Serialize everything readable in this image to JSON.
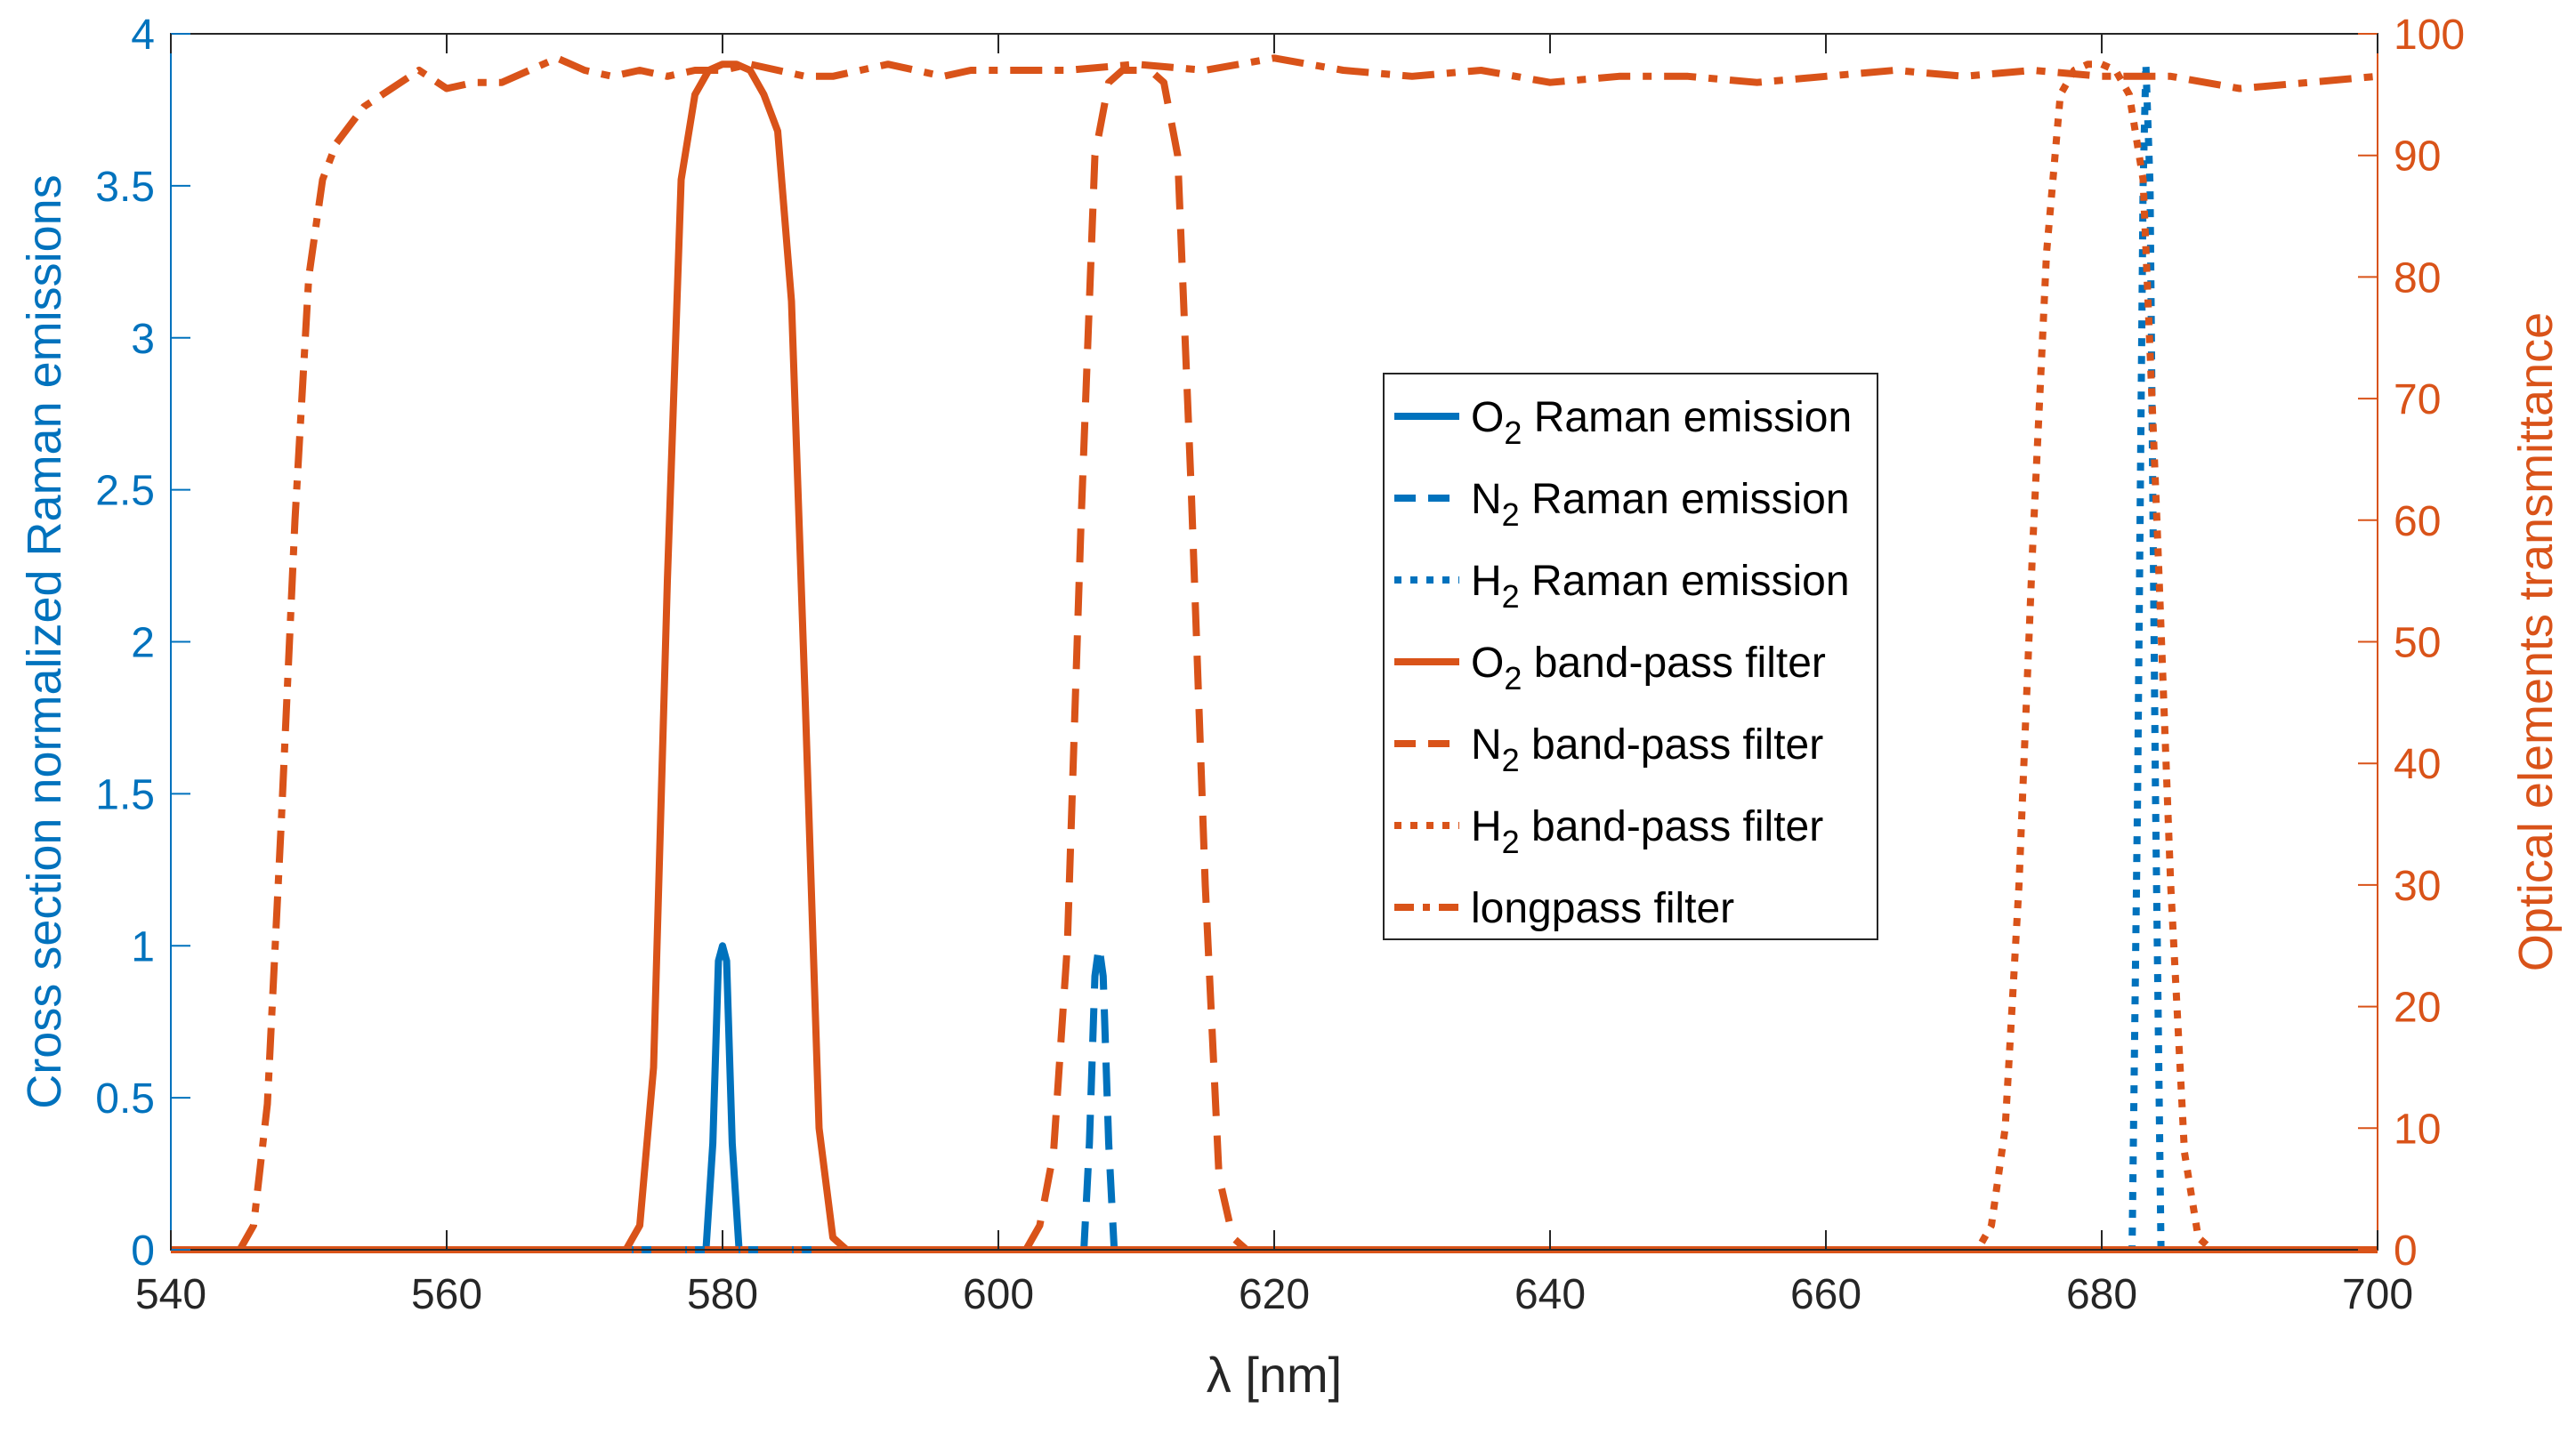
{
  "chart_data": {
    "type": "line",
    "xlabel": "λ [nm]",
    "ylabel_left": "Cross section normalized Raman emissions",
    "ylabel_right": "Optical elements transmittance",
    "xlim": [
      540,
      700
    ],
    "ylim_left": [
      0,
      4
    ],
    "ylim_right": [
      0,
      100
    ],
    "x_ticks": [
      "540",
      "560",
      "580",
      "600",
      "620",
      "640",
      "660",
      "680",
      "700"
    ],
    "y_left_ticks": [
      "0",
      "0.5",
      "1",
      "1.5",
      "2",
      "2.5",
      "3",
      "3.5",
      "4"
    ],
    "y_right_ticks": [
      "0",
      "10",
      "20",
      "30",
      "40",
      "50",
      "60",
      "70",
      "80",
      "90",
      "100"
    ],
    "grid": false,
    "colors": {
      "raman": "#0072BD",
      "filter": "#D95319",
      "axis": "#262626"
    },
    "legend_position": "center-right",
    "series": [
      {
        "name": "O2 Raman emission",
        "label_base": "O",
        "label_sub": "2",
        "label_rest": " Raman emission",
        "axis": "left",
        "style": "solid",
        "color": "#0072BD",
        "x": [
          540,
          578.8,
          579.3,
          579.7,
          580.0,
          580.3,
          580.7,
          581.2,
          700
        ],
        "y": [
          0,
          0,
          0.35,
          0.95,
          1.0,
          0.95,
          0.35,
          0,
          0
        ]
      },
      {
        "name": "N2 Raman emission",
        "label_base": "N",
        "label_sub": "2",
        "label_rest": " Raman emission",
        "axis": "left",
        "style": "dashed",
        "color": "#0072BD",
        "x": [
          540,
          606.2,
          606.6,
          607.0,
          607.3,
          607.6,
          608.0,
          608.4,
          700
        ],
        "y": [
          0,
          0,
          0.35,
          0.9,
          1.0,
          0.9,
          0.35,
          0,
          0
        ]
      },
      {
        "name": "H2 Raman emission",
        "label_base": "H",
        "label_sub": "2",
        "label_rest": " Raman emission",
        "axis": "left",
        "style": "dotted",
        "color": "#0072BD",
        "x": [
          540,
          682.2,
          682.6,
          683.0,
          683.2,
          683.5,
          683.9,
          684.3,
          700
        ],
        "y": [
          0,
          0,
          1.5,
          3.5,
          3.9,
          3.5,
          1.5,
          0,
          0
        ]
      },
      {
        "name": "O2 band-pass filter",
        "label_base": "O",
        "label_sub": "2",
        "label_rest": " band-pass filter",
        "axis": "right",
        "style": "solid",
        "color": "#D95319",
        "x": [
          540,
          573,
          574,
          575,
          576,
          577,
          578,
          579,
          580,
          581,
          582,
          583,
          584,
          585,
          586,
          587,
          588,
          589,
          700
        ],
        "y": [
          0,
          0,
          2,
          15,
          55,
          88,
          95,
          97,
          97.5,
          97.5,
          97,
          95,
          92,
          78,
          45,
          10,
          1,
          0,
          0
        ]
      },
      {
        "name": "N2 band-pass filter",
        "label_base": "N",
        "label_sub": "2",
        "label_rest": " band-pass filter",
        "axis": "right",
        "style": "dashed",
        "color": "#D95319",
        "x": [
          540,
          602,
          603,
          604,
          605,
          606,
          607,
          608,
          609,
          610,
          611,
          612,
          613,
          614,
          615,
          616,
          617,
          618,
          700
        ],
        "y": [
          0,
          0,
          2,
          8,
          25,
          60,
          90,
          96,
          97,
          97,
          97,
          96,
          90,
          62,
          30,
          6,
          1,
          0,
          0
        ]
      },
      {
        "name": "H2 band-pass filter",
        "label_base": "H",
        "label_sub": "2",
        "label_rest": " band-pass filter",
        "axis": "right",
        "style": "dotted",
        "color": "#D95319",
        "x": [
          540,
          671,
          672,
          673,
          674,
          675,
          676,
          677,
          678,
          679,
          680,
          681,
          682,
          683,
          684,
          685,
          686,
          687,
          688,
          700
        ],
        "y": [
          0,
          0,
          2,
          10,
          30,
          58,
          82,
          95,
          97,
          97.5,
          97.5,
          97,
          95,
          88,
          60,
          30,
          8,
          1,
          0,
          0
        ]
      },
      {
        "name": "longpass filter",
        "label_base": "longpass filter",
        "label_sub": "",
        "label_rest": "",
        "axis": "right",
        "style": "dashdot",
        "color": "#D95319",
        "x": [
          540,
          545,
          546,
          547,
          548,
          549,
          550,
          551,
          552,
          554,
          556,
          558,
          560,
          562,
          564,
          566,
          568,
          570,
          572,
          574,
          576,
          578,
          580,
          582,
          584,
          586,
          588,
          590,
          592,
          594,
          596,
          598,
          600,
          605,
          610,
          615,
          620,
          625,
          630,
          635,
          640,
          645,
          650,
          655,
          660,
          665,
          670,
          675,
          680,
          685,
          690,
          695,
          700
        ],
        "y": [
          0,
          0,
          2,
          12,
          35,
          60,
          80,
          88,
          91,
          94,
          95.5,
          97,
          95.5,
          96,
          96,
          97,
          98,
          97,
          96.5,
          97,
          96.5,
          97,
          97,
          97.5,
          97,
          96.5,
          96.5,
          97,
          97.5,
          97,
          96.5,
          97,
          97,
          97,
          97.5,
          97,
          98,
          97,
          96.5,
          97,
          96,
          96.5,
          96.5,
          96,
          96.5,
          97,
          96.5,
          97,
          96.5,
          96.5,
          95.5,
          96,
          96.5
        ]
      }
    ]
  }
}
